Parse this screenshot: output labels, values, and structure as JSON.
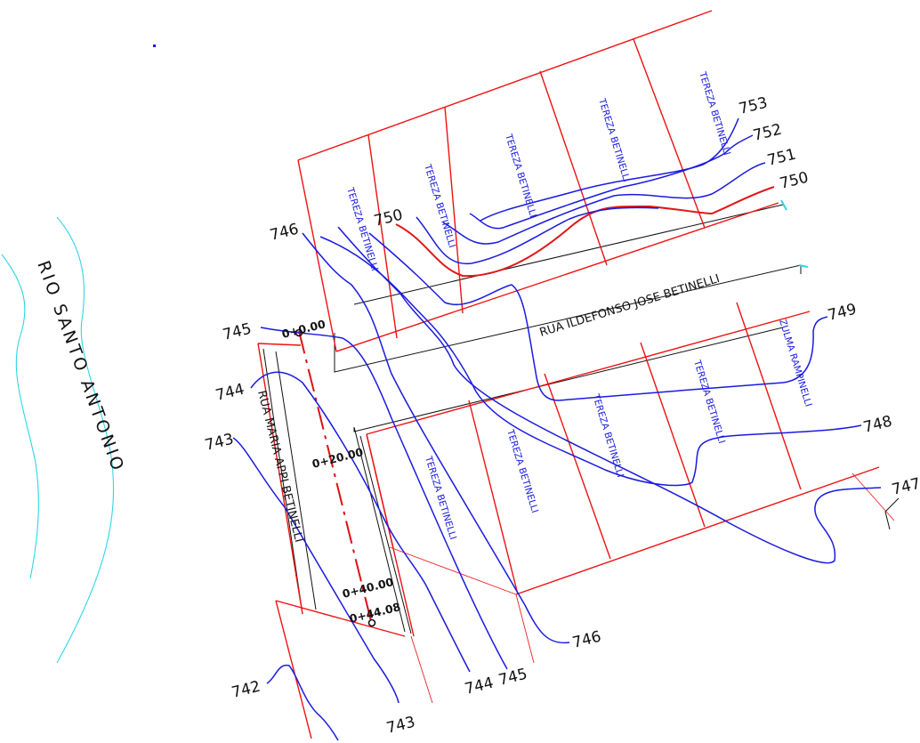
{
  "river": {
    "name": "RIO SANTO ANTONIO"
  },
  "streets": {
    "main": "RUA ILDEFONSO JOSE BETINELLI",
    "side": "RUA MARIA APPI BETINELLI"
  },
  "lot_owners": [
    "TEREZA BETINELLI",
    "TEREZA BETINELLI",
    "TEREZA BETINELLI",
    "TEREZA BETINELLI",
    "TEREZA BETINELLI",
    "TEREZA BETINELLI",
    "TEREZA BETINELLI",
    "TEREZA BETINELLI",
    "TEREZA BETINELLI",
    "ZULMA RAMPINELLI"
  ],
  "contour_labels": [
    "753",
    "752",
    "751",
    "750",
    "750",
    "749",
    "748",
    "747",
    "746",
    "746",
    "745",
    "745",
    "744",
    "744",
    "743",
    "743",
    "742"
  ],
  "stations": [
    "0+0.00",
    "0+20.00",
    "0+40.00",
    "0+44.08"
  ],
  "colors": {
    "lot_lines": "#ee1111",
    "contours": "#1a1ae0",
    "river": "#2ed6e6",
    "street_lines": "#111111"
  }
}
